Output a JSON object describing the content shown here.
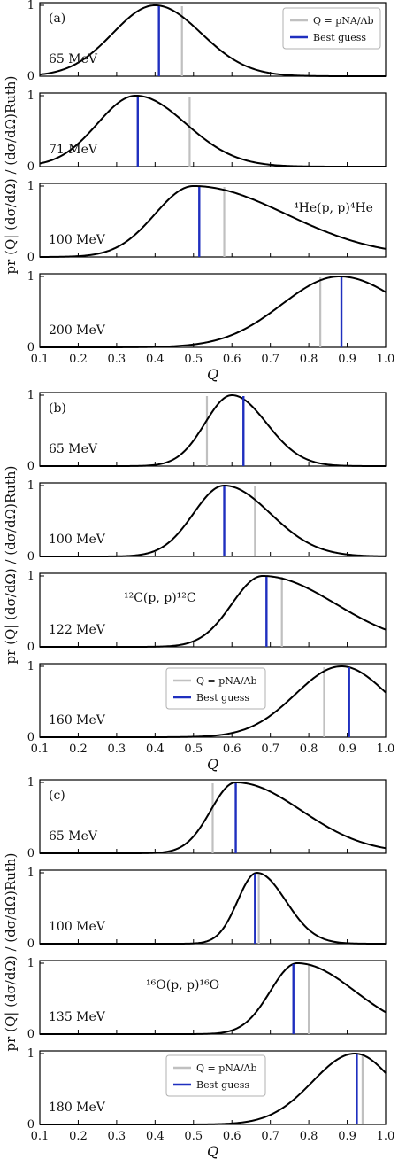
{
  "chart_data": [
    {
      "label": "(a)",
      "reaction": "⁴He(p, p)⁴He",
      "ylabel": "pr (Q| (dσ/dΩ) / (dσ/dΩ)Ruth)",
      "xlabel": "Q",
      "xlim": [
        0.1,
        1.0
      ],
      "ylim": [
        0,
        1
      ],
      "xticks": [
        "0.1",
        "0.2",
        "0.3",
        "0.4",
        "0.5",
        "0.6",
        "0.7",
        "0.8",
        "0.9",
        "1.0"
      ],
      "yticks": [
        "0",
        "1"
      ],
      "legend": {
        "position": "top-right",
        "panel": 0,
        "entries": [
          {
            "name": "Q = pNA/Λb",
            "color": "#c0c0c0"
          },
          {
            "name": "Best guess",
            "color": "#1f2fbf"
          }
        ]
      },
      "panels": [
        {
          "energy": "65 MeV",
          "peak": 0.4,
          "sigma_left": 0.11,
          "sigma_right": 0.12,
          "lines": {
            "ratio": 0.47,
            "best": 0.41
          }
        },
        {
          "energy": "71 MeV",
          "peak": 0.35,
          "sigma_left": 0.1,
          "sigma_right": 0.13,
          "lines": {
            "ratio": 0.49,
            "best": 0.355
          }
        },
        {
          "energy": "100 MeV",
          "peak": 0.5,
          "sigma_left": 0.1,
          "sigma_right": 0.24,
          "lines": {
            "ratio": 0.58,
            "best": 0.515
          }
        },
        {
          "energy": "200 MeV",
          "peak": 0.88,
          "sigma_left": 0.15,
          "sigma_right": 0.17,
          "lines": {
            "ratio": 0.83,
            "best": 0.885
          }
        }
      ]
    },
    {
      "label": "(b)",
      "reaction": "¹²C(p, p)¹²C",
      "ylabel": "pr (Q| (dσ/dΩ) / (dσ/dΩ)Ruth)",
      "xlabel": "Q",
      "xlim": [
        0.1,
        1.0
      ],
      "ylim": [
        0,
        1
      ],
      "xticks": [
        "0.1",
        "0.2",
        "0.3",
        "0.4",
        "0.5",
        "0.6",
        "0.7",
        "0.8",
        "0.9",
        "1.0"
      ],
      "yticks": [
        "0",
        "1"
      ],
      "legend": {
        "position": "center",
        "panel": 3,
        "entries": [
          {
            "name": "Q = pNA/Λb",
            "color": "#c0c0c0"
          },
          {
            "name": "Best guess",
            "color": "#1f2fbf"
          }
        ]
      },
      "panels": [
        {
          "energy": "65 MeV",
          "peak": 0.6,
          "sigma_left": 0.07,
          "sigma_right": 0.09,
          "lines": {
            "ratio": 0.535,
            "best": 0.63
          }
        },
        {
          "energy": "100 MeV",
          "peak": 0.58,
          "sigma_left": 0.08,
          "sigma_right": 0.12,
          "lines": {
            "ratio": 0.66,
            "best": 0.58
          }
        },
        {
          "energy": "122 MeV",
          "peak": 0.68,
          "sigma_left": 0.08,
          "sigma_right": 0.19,
          "lines": {
            "ratio": 0.73,
            "best": 0.69
          }
        },
        {
          "energy": "160 MeV",
          "peak": 0.885,
          "sigma_left": 0.12,
          "sigma_right": 0.12,
          "lines": {
            "ratio": 0.84,
            "best": 0.905
          }
        }
      ]
    },
    {
      "label": "(c)",
      "reaction": "¹⁶O(p, p)¹⁶O",
      "ylabel": "pr (Q| (dσ/dΩ) / (dσ/dΩ)Ruth)",
      "xlabel": "Q",
      "xlim": [
        0.1,
        1.0
      ],
      "ylim": [
        0,
        1
      ],
      "xticks": [
        "0.1",
        "0.2",
        "0.3",
        "0.4",
        "0.5",
        "0.6",
        "0.7",
        "0.8",
        "0.9",
        "1.0"
      ],
      "yticks": [
        "0",
        "1"
      ],
      "legend": {
        "position": "center",
        "panel": 3,
        "entries": [
          {
            "name": "Q = pNA/Λb",
            "color": "#c0c0c0"
          },
          {
            "name": "Best guess",
            "color": "#1f2fbf"
          }
        ]
      },
      "panels": [
        {
          "energy": "65 MeV",
          "peak": 0.61,
          "sigma_left": 0.065,
          "sigma_right": 0.17,
          "lines": {
            "ratio": 0.55,
            "best": 0.61
          }
        },
        {
          "energy": "100 MeV",
          "peak": 0.665,
          "sigma_left": 0.05,
          "sigma_right": 0.075,
          "lines": {
            "ratio": 0.67,
            "best": 0.66
          }
        },
        {
          "energy": "135 MeV",
          "peak": 0.77,
          "sigma_left": 0.07,
          "sigma_right": 0.15,
          "lines": {
            "ratio": 0.8,
            "best": 0.76
          }
        },
        {
          "energy": "180 MeV",
          "peak": 0.92,
          "sigma_left": 0.11,
          "sigma_right": 0.1,
          "lines": {
            "ratio": 0.94,
            "best": 0.925
          }
        }
      ]
    }
  ]
}
